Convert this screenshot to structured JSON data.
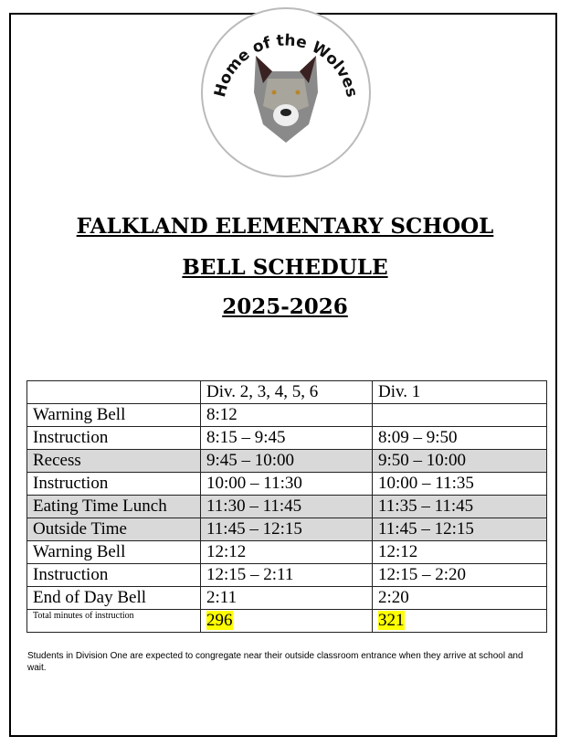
{
  "logo": {
    "text": "\"Home of the Wolves\"",
    "icon": "wolf-head-icon"
  },
  "header": {
    "school": "FALKLAND ELEMENTARY SCHOOL",
    "title": "BELL SCHEDULE",
    "year": "2025-2026"
  },
  "table": {
    "columns": [
      "",
      "Div. 2, 3, 4, 5, 6",
      "Div. 1"
    ],
    "rows": [
      {
        "label": "Warning Bell",
        "div2": "8:12",
        "div1": "",
        "shaded": false
      },
      {
        "label": "Instruction",
        "div2": "8:15 – 9:45",
        "div1": "8:09 – 9:50",
        "shaded": false
      },
      {
        "label": "Recess",
        "div2": "9:45 – 10:00",
        "div1": "9:50 – 10:00",
        "shaded": true
      },
      {
        "label": "Instruction",
        "div2": "10:00 – 11:30",
        "div1": "10:00 – 11:35",
        "shaded": false
      },
      {
        "label": "Eating Time Lunch",
        "div2": "11:30 – 11:45",
        "div1": "11:35 – 11:45",
        "shaded": true
      },
      {
        "label": "Outside Time",
        "div2": "11:45 – 12:15",
        "div1": "11:45 – 12:15",
        "shaded": true
      },
      {
        "label": "Warning Bell",
        "div2": "12:12",
        "div1": "12:12",
        "shaded": false
      },
      {
        "label": "Instruction",
        "div2": "12:15 – 2:11",
        "div1": "12:15 – 2:20",
        "shaded": false
      },
      {
        "label": "End of Day Bell",
        "div2": "2:11",
        "div1": "2:20",
        "shaded": false
      }
    ],
    "total": {
      "label": "Total minutes of instruction",
      "div2": "296",
      "div1": "321"
    },
    "highlight_color": "#ffff00",
    "shade_color": "#d9d9d9"
  },
  "note": "Students in Division One are expected to congregate near their outside classroom entrance when they arrive at school and wait."
}
